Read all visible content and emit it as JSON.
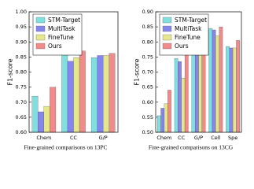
{
  "chart_data": [
    {
      "type": "bar",
      "ylabel": "F1-score",
      "caption": "Fine-grained comparisons on 13PC",
      "categories": [
        "Chem",
        "CC",
        "G/P"
      ],
      "series": [
        {
          "name": "STM-Target",
          "color": "#80e0e0",
          "values": [
            0.72,
            0.86,
            0.848
          ]
        },
        {
          "name": "MultiTask",
          "color": "#8585ee",
          "values": [
            0.668,
            0.836,
            0.855
          ]
        },
        {
          "name": "FineTune",
          "color": "#e6e68c",
          "values": [
            0.686,
            0.848,
            0.855
          ]
        },
        {
          "name": "Ours",
          "color": "#f28a8a",
          "values": [
            0.75,
            0.87,
            0.862
          ]
        }
      ],
      "ylim": [
        0.6,
        1.0
      ],
      "yticks": [
        {
          "value": 0.6,
          "label": "0.60"
        },
        0.65,
        {
          "value": 0.7,
          "label": "0.70"
        },
        0.75,
        {
          "value": 0.8,
          "label": "0.80"
        },
        0.85,
        {
          "value": 0.9,
          "label": "0.90"
        },
        0.95,
        {
          "value": 1.0,
          "label": "1.00"
        }
      ],
      "legend": "upper left"
    },
    {
      "type": "bar",
      "ylabel": "F1-score",
      "caption": "Fine-grained comparisons on 13CG",
      "categories": [
        "Chem",
        "CC",
        "G/P",
        "Cell",
        "Spe"
      ],
      "series": [
        {
          "name": "STM-Target",
          "color": "#80e0e0",
          "values": [
            0.555,
            0.745,
            0.795,
            0.845,
            0.785
          ]
        },
        {
          "name": "MultiTask",
          "color": "#8585ee",
          "values": [
            0.58,
            0.735,
            0.81,
            0.84,
            0.78
          ]
        },
        {
          "name": "FineTune",
          "color": "#e6e68c",
          "values": [
            0.595,
            0.68,
            0.805,
            0.82,
            0.78
          ]
        },
        {
          "name": "Ours",
          "color": "#f28a8a",
          "values": [
            0.64,
            0.79,
            0.83,
            0.85,
            0.805
          ]
        }
      ],
      "ylim": [
        0.5,
        0.9
      ],
      "yticks": [
        {
          "value": 0.5,
          "label": "0.50"
        },
        0.55,
        {
          "value": 0.6,
          "label": "0.60"
        },
        0.65,
        {
          "value": 0.7,
          "label": "0.70"
        },
        0.75,
        {
          "value": 0.8,
          "label": "0.80"
        },
        0.85,
        {
          "value": 0.9,
          "label": "0.90"
        }
      ],
      "legend": "upper left"
    }
  ]
}
